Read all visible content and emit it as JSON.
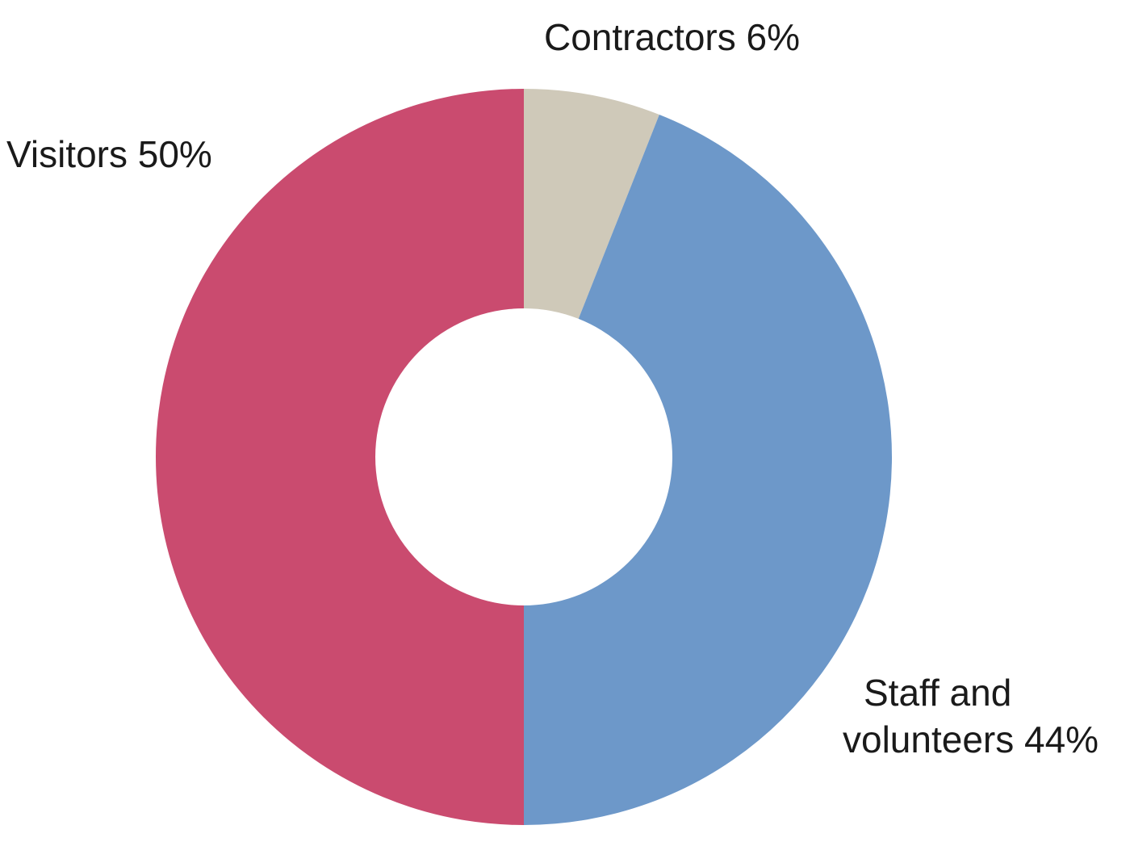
{
  "chart_data": {
    "type": "pie",
    "donut": true,
    "legend": "none",
    "slices": [
      {
        "label_lines": [
          "Contractors 6%"
        ],
        "value": 6,
        "color": "#cfc9b9"
      },
      {
        "label_lines": [
          "Staff and",
          "volunteers 44%"
        ],
        "value": 44,
        "color": "#6d98c9"
      },
      {
        "label_lines": [
          "Visitors 50%"
        ],
        "value": 50,
        "color": "#ca4b6f"
      }
    ]
  }
}
